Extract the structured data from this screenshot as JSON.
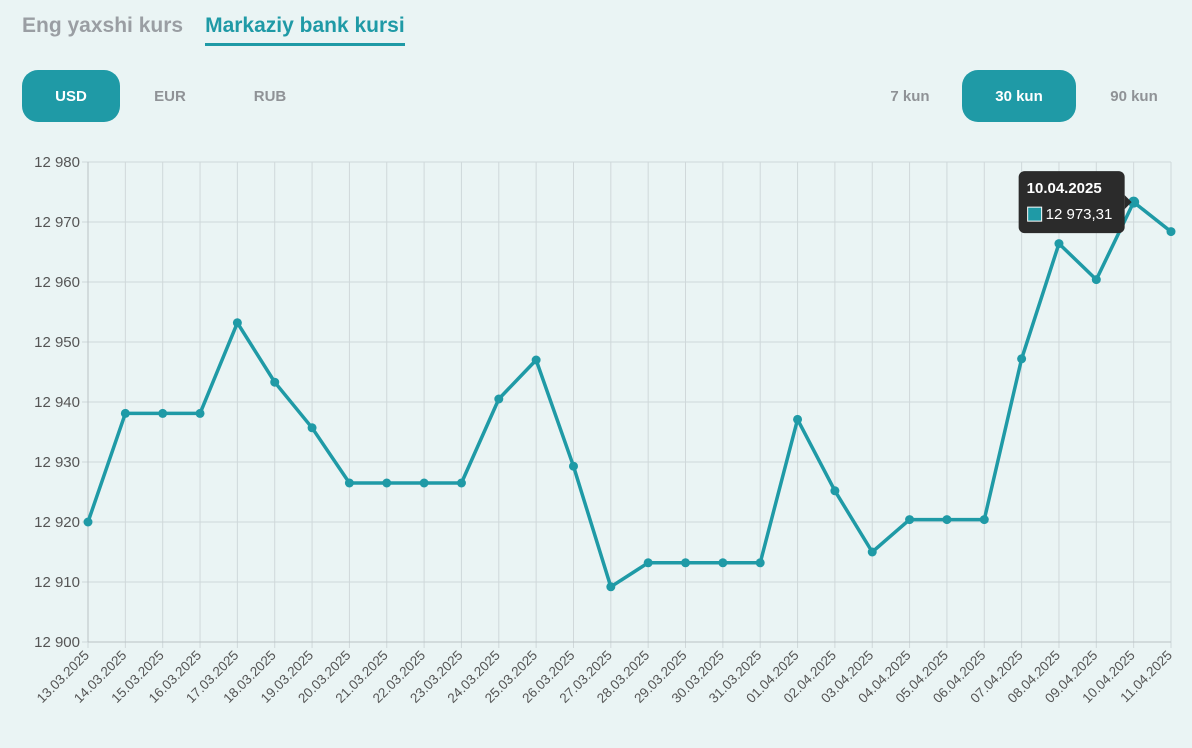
{
  "tabs": [
    {
      "label": "Eng yaxshi kurs",
      "active": false
    },
    {
      "label": "Markaziy bank kursi",
      "active": true
    }
  ],
  "currencies": [
    {
      "label": "USD",
      "active": true
    },
    {
      "label": "EUR",
      "active": false
    },
    {
      "label": "RUB",
      "active": false
    }
  ],
  "periods": [
    {
      "label": "7 kun",
      "active": false
    },
    {
      "label": "30 kun",
      "active": true
    },
    {
      "label": "90 kun",
      "active": false
    }
  ],
  "colors": {
    "accent": "#1f9aa6",
    "grid": "#cfd8da",
    "tooltip_bg": "#2b2b2b"
  },
  "chart_data": {
    "type": "line",
    "categories": [
      "13.03.2025",
      "14.03.2025",
      "15.03.2025",
      "16.03.2025",
      "17.03.2025",
      "18.03.2025",
      "19.03.2025",
      "20.03.2025",
      "21.03.2025",
      "22.03.2025",
      "23.03.2025",
      "24.03.2025",
      "25.03.2025",
      "26.03.2025",
      "27.03.2025",
      "28.03.2025",
      "29.03.2025",
      "30.03.2025",
      "31.03.2025",
      "01.04.2025",
      "02.04.2025",
      "03.04.2025",
      "04.04.2025",
      "05.04.2025",
      "06.04.2025",
      "07.04.2025",
      "08.04.2025",
      "09.04.2025",
      "10.04.2025",
      "11.04.2025"
    ],
    "series": [
      {
        "values": [
          12920.0,
          12938.1,
          12938.1,
          12938.1,
          12953.2,
          12943.3,
          12935.7,
          12926.5,
          12926.5,
          12926.5,
          12926.5,
          12940.5,
          12947.0,
          12929.3,
          12909.2,
          12913.2,
          12913.2,
          12913.2,
          12913.2,
          12937.1,
          12925.2,
          12915.0,
          12920.4,
          12920.4,
          12920.4,
          12947.2,
          12966.4,
          12960.4,
          12973.31,
          12968.4
        ]
      }
    ],
    "ylim": [
      12900,
      12980
    ],
    "yticks": [
      "12 900",
      "12 910",
      "12 920",
      "12 930",
      "12 940",
      "12 950",
      "12 960",
      "12 970",
      "12 980"
    ],
    "grid": true,
    "tooltip": {
      "date": "10.04.2025",
      "value": "12 973,31",
      "index": 28
    }
  }
}
